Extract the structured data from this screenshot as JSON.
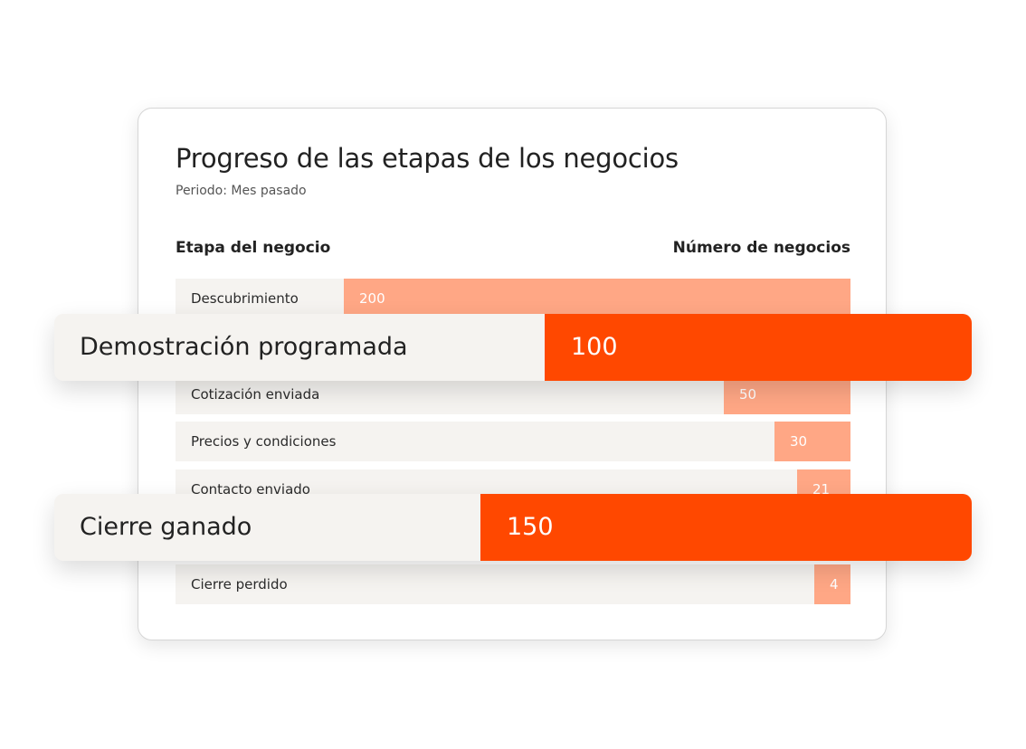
{
  "chart_data": {
    "type": "bar",
    "title": "Progreso de las etapas de los negocios",
    "subtitle": "Periodo: Mes pasado",
    "xlabel": "Etapa del negocio",
    "ylabel": "Número de negocios",
    "categories": [
      "Descubrimiento",
      "Cotización enviada",
      "Precios y condiciones",
      "Contacto enviado",
      "Cierre perdido"
    ],
    "values": [
      200,
      50,
      30,
      21,
      4
    ],
    "highlights": [
      {
        "label": "Demostración programada",
        "value": 100
      },
      {
        "label": "Cierre ganado",
        "value": 150
      }
    ],
    "colors": {
      "bar": "#ffa785",
      "highlight_bar": "#ff4800",
      "track": "#f5f3f0"
    }
  }
}
